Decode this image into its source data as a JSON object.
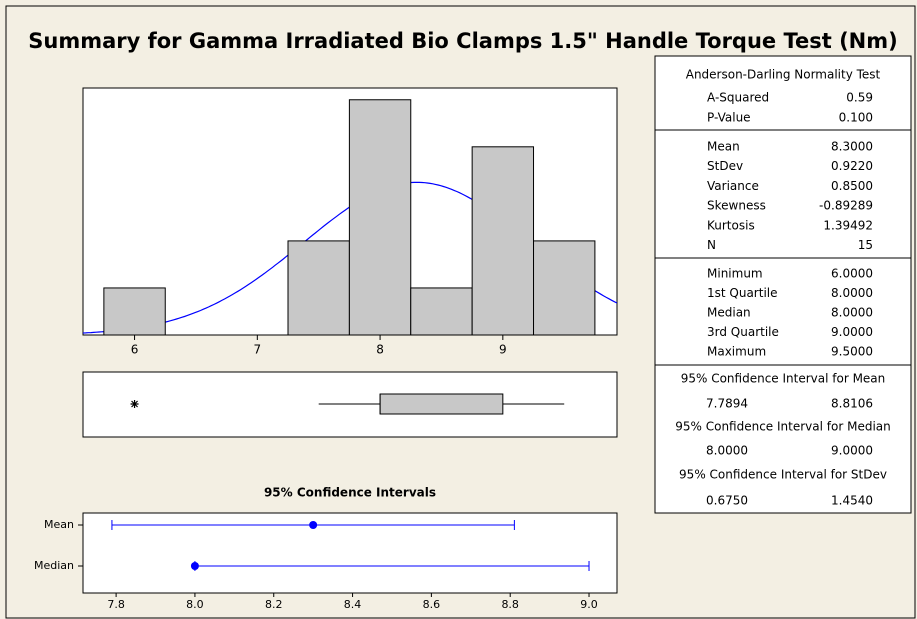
{
  "title": "Summary for Gamma Irradiated Bio Clamps 1.5\" Handle Torque Test (Nm)",
  "chart_data": [
    {
      "type": "histogram",
      "bins": [
        5.75,
        6.25,
        6.75,
        7.25,
        7.75,
        8.25,
        8.75,
        9.25,
        9.75
      ],
      "counts": [
        1,
        0,
        0,
        2,
        5,
        1,
        4,
        2
      ],
      "xlim": [
        5.58,
        9.93
      ],
      "ylim": [
        0,
        5.25
      ],
      "xticks": [
        6,
        7,
        8,
        9
      ],
      "color": "#c8c8c8",
      "fit": {
        "mean": 8.3,
        "stdev": 0.922
      },
      "fit_color": "#0000ff"
    },
    {
      "type": "boxplot",
      "whisker_low": 7.5,
      "q1": 8,
      "median": 8,
      "q3": 9,
      "whisker_high": 9.5,
      "outliers": [
        6
      ],
      "xlim": [
        5.58,
        9.93
      ],
      "color": "#c8c8c8"
    },
    {
      "type": "interval",
      "title": "95% Confidence Intervals",
      "categories": [
        "Mean",
        "Median"
      ],
      "estimates": [
        8.3,
        8
      ],
      "lower": [
        7.7894,
        8
      ],
      "upper": [
        8.8106,
        9
      ],
      "xlim": [
        7.716,
        9.071
      ],
      "xticks": [
        7.8,
        {
          "value": 8,
          "label": "8.0"
        },
        8.2,
        8.4,
        8.6,
        8.8,
        {
          "value": 9,
          "label": "9.0"
        }
      ],
      "color": "#0000ff"
    }
  ],
  "stats": {
    "normality": {
      "title": "Anderson-Darling Normality Test",
      "rows": [
        [
          "A-Squared",
          "0.59"
        ],
        [
          "P-Value",
          "0.100"
        ]
      ]
    },
    "moments": {
      "rows": [
        [
          "Mean",
          "8.3000"
        ],
        [
          "StDev",
          "0.9220"
        ],
        [
          "Variance",
          "0.8500"
        ],
        [
          "Skewness",
          "-0.89289"
        ],
        [
          "Kurtosis",
          "1.39492"
        ],
        [
          "N",
          "15"
        ]
      ]
    },
    "quartiles": {
      "rows": [
        [
          "Minimum",
          "6.0000"
        ],
        [
          "1st Quartile",
          "8.0000"
        ],
        [
          "Median",
          "8.0000"
        ],
        [
          "3rd Quartile",
          "9.0000"
        ],
        [
          "Maximum",
          "9.5000"
        ]
      ]
    },
    "intervals": [
      {
        "title": "95% Confidence Interval for Mean",
        "values": [
          "7.7894",
          "8.8106"
        ]
      },
      {
        "title": "95% Confidence Interval for Median",
        "values": [
          "8.0000",
          "9.0000"
        ]
      },
      {
        "title": "95% Confidence Interval for StDev",
        "values": [
          "0.6750",
          "1.4540"
        ]
      }
    ]
  }
}
